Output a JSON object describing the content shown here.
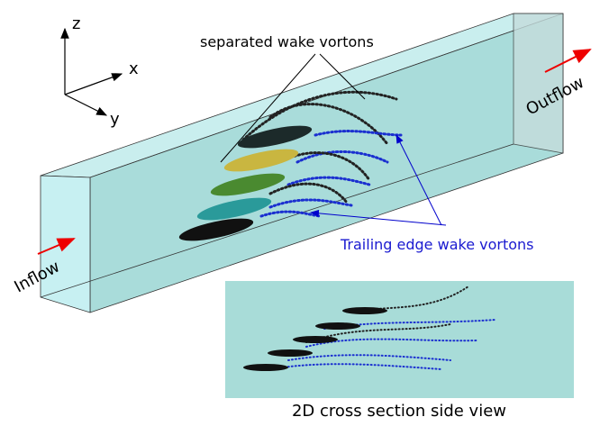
{
  "axes": {
    "z": "z",
    "x": "x",
    "y": "y"
  },
  "labels": {
    "separated": "separated wake vortons",
    "outflow": "Outflow",
    "inflow": "Inflow",
    "trailing": "Trailing edge wake vortons"
  },
  "inset": {
    "caption": "2D cross section side view"
  }
}
